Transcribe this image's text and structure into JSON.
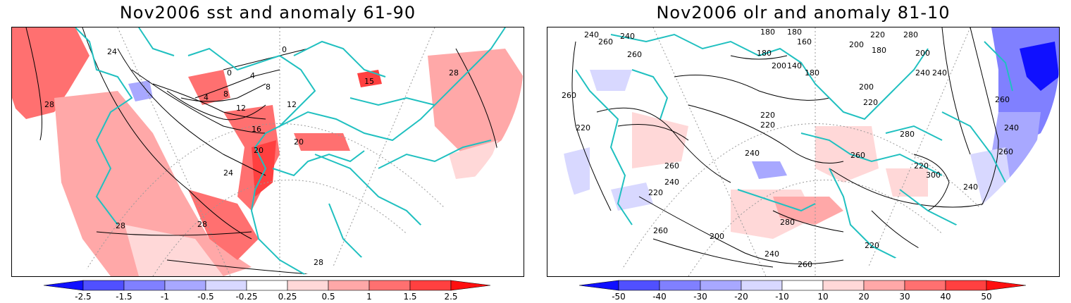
{
  "panels": [
    {
      "title": "Nov2006 sst and anomaly 61-90",
      "colorbar": {
        "labels": [
          "-2.5",
          "-1.5",
          "-1",
          "-0.5",
          "-0.25",
          "0.25",
          "0.5",
          "1",
          "1.5",
          "2.5"
        ],
        "colors": [
          "#1010ff",
          "#5050ff",
          "#8080ff",
          "#a8a8ff",
          "#d8d8ff",
          "#ffffff",
          "#ffd8d8",
          "#ffa8a8",
          "#ff7070",
          "#ff4040",
          "#ff1010"
        ]
      },
      "contour_labels": [
        "0",
        "0",
        "4",
        "4",
        "8",
        "8",
        "12",
        "12",
        "15",
        "16",
        "20",
        "20",
        "24",
        "24",
        "28",
        "28",
        "28",
        "28",
        "28"
      ]
    },
    {
      "title": "Nov2006 olr and anomaly 81-10",
      "colorbar": {
        "labels": [
          "-50",
          "-40",
          "-30",
          "-20",
          "-10",
          "10",
          "20",
          "30",
          "40",
          "50"
        ],
        "colors": [
          "#1010ff",
          "#5050ff",
          "#8080ff",
          "#a8a8ff",
          "#d8d8ff",
          "#ffffff",
          "#ffd8d8",
          "#ffa8a8",
          "#ff7070",
          "#ff4040",
          "#ff1010"
        ]
      },
      "contour_labels": [
        "240",
        "240",
        "260",
        "260",
        "180",
        "180",
        "160",
        "180",
        "140",
        "180",
        "200",
        "200",
        "220",
        "280",
        "200",
        "180",
        "240",
        "200",
        "220",
        "260",
        "220",
        "220",
        "220",
        "260",
        "240",
        "260",
        "240",
        "280",
        "260",
        "300",
        "240",
        "260",
        "220",
        "280",
        "200",
        "240",
        "240",
        "260",
        "260",
        "220",
        "240",
        "220"
      ]
    }
  ],
  "colors": {
    "coast": "#20c0c0",
    "contour": "#000000",
    "grid": "#999999"
  }
}
